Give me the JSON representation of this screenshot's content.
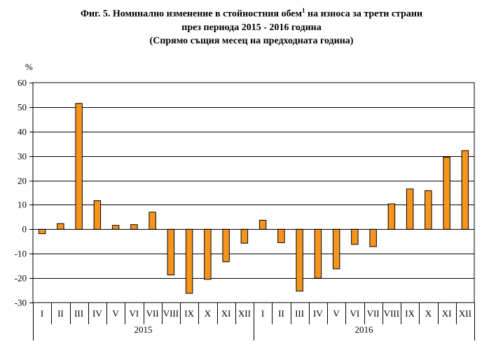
{
  "chart_data": {
    "type": "bar",
    "title": "Фиг. 5. Номинално изменение в стойностния обем",
    "title_sup": "1",
    "title_tail": " на износа за трети страни",
    "subtitle": "през периода 2015 - 2016 година",
    "subtitle2": "(Спрямо същия месец на предходната година)",
    "ylabel": "%",
    "xlabel": "",
    "ylim": [
      -30,
      60
    ],
    "yticks": [
      -30,
      -20,
      -10,
      0,
      10,
      20,
      30,
      40,
      50,
      60
    ],
    "grid": true,
    "bar_color": "#f7941d",
    "groups": [
      "2015",
      "2016"
    ],
    "categories": [
      "I",
      "II",
      "III",
      "IV",
      "V",
      "VI",
      "VII",
      "VIII",
      "IX",
      "X",
      "XI",
      "XII",
      "I",
      "II",
      "III",
      "IV",
      "V",
      "VI",
      "VII",
      "VIII",
      "IX",
      "X",
      "XI",
      "XII"
    ],
    "values": [
      -1.8,
      2.3,
      51.5,
      11.7,
      1.6,
      1.9,
      7.0,
      -18.7,
      -26.2,
      -20.5,
      -13.3,
      -5.7,
      3.7,
      -5.5,
      -25.3,
      -20.0,
      -16.2,
      -6.2,
      -7.1,
      10.4,
      16.5,
      15.8,
      29.5,
      32.2
    ]
  }
}
